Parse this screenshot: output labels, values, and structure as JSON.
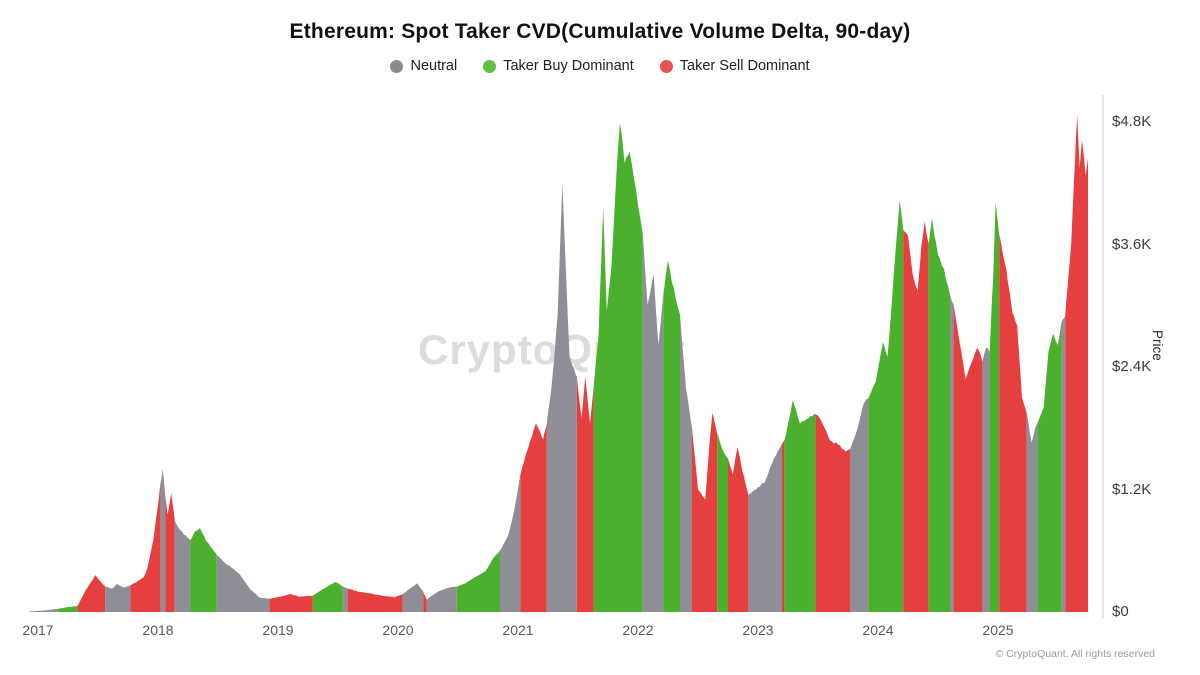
{
  "title": "Ethereum: Spot Taker CVD(Cumulative Volume Delta, 90-day)",
  "watermark": "CryptoQuant",
  "footer": "© CryptoQuant. All rights reserved",
  "legend": [
    {
      "key": "neutral",
      "label": "Neutral",
      "dot_color": "#8b8b8b"
    },
    {
      "key": "buy",
      "label": "Taker Buy Dominant",
      "dot_color": "#62bd45"
    },
    {
      "key": "sell",
      "label": "Taker Sell Dominant",
      "dot_color": "#ea5252"
    }
  ],
  "y_axis": {
    "label": "Price",
    "ticks": [
      {
        "value": 0,
        "label": "$0"
      },
      {
        "value": 1200,
        "label": "$1.2K"
      },
      {
        "value": 2400,
        "label": "$2.4K"
      },
      {
        "value": 3600,
        "label": "$3.6K"
      },
      {
        "value": 4800,
        "label": "$4.8K"
      }
    ]
  },
  "x_axis": {
    "ticks": [
      {
        "value": 2017,
        "label": "2017"
      },
      {
        "value": 2018,
        "label": "2018"
      },
      {
        "value": 2019,
        "label": "2019"
      },
      {
        "value": 2020,
        "label": "2020"
      },
      {
        "value": 2021,
        "label": "2021"
      },
      {
        "value": 2022,
        "label": "2022"
      },
      {
        "value": 2023,
        "label": "2023"
      },
      {
        "value": 2024,
        "label": "2024"
      },
      {
        "value": 2025,
        "label": "2025"
      }
    ]
  },
  "chart_data": {
    "type": "area",
    "title": "Ethereum: Spot Taker CVD(Cumulative Volume Delta, 90-day)",
    "xlabel": "",
    "ylabel": "Price",
    "x_unit": "year",
    "y_unit": "USD",
    "xlim": [
      2016.93,
      2025.78
    ],
    "ylim": [
      0,
      5050
    ],
    "grid": false,
    "legend_position": "top",
    "series_colors": {
      "neutral": "#8e8e96",
      "buy": "#4cb02f",
      "sell": "#e5403f"
    },
    "axis_line_color": "#dcdcdc",
    "segments": [
      {
        "regime": "neutral",
        "points": [
          [
            2016.93,
            5
          ],
          [
            2017.05,
            15
          ],
          [
            2017.16,
            30
          ]
        ]
      },
      {
        "regime": "buy",
        "points": [
          [
            2017.16,
            30
          ],
          [
            2017.23,
            45
          ],
          [
            2017.33,
            60
          ]
        ]
      },
      {
        "regime": "sell",
        "points": [
          [
            2017.33,
            60
          ],
          [
            2017.39,
            200
          ],
          [
            2017.48,
            360
          ],
          [
            2017.52,
            300
          ],
          [
            2017.56,
            250
          ]
        ]
      },
      {
        "regime": "neutral",
        "points": [
          [
            2017.56,
            250
          ],
          [
            2017.62,
            230
          ],
          [
            2017.66,
            275
          ],
          [
            2017.71,
            240
          ],
          [
            2017.77,
            260
          ]
        ]
      },
      {
        "regime": "sell",
        "points": [
          [
            2017.77,
            260
          ],
          [
            2017.83,
            300
          ],
          [
            2017.88,
            340
          ],
          [
            2017.91,
            420
          ],
          [
            2017.96,
            700
          ],
          [
            2018.0,
            1050
          ],
          [
            2018.02,
            1250
          ]
        ]
      },
      {
        "regime": "neutral",
        "points": [
          [
            2018.02,
            1250
          ],
          [
            2018.04,
            1400
          ],
          [
            2018.06,
            1150
          ]
        ]
      },
      {
        "regime": "sell",
        "points": [
          [
            2018.06,
            1150
          ],
          [
            2018.08,
            950
          ],
          [
            2018.11,
            1160
          ],
          [
            2018.14,
            900
          ]
        ]
      },
      {
        "regime": "neutral",
        "points": [
          [
            2018.14,
            900
          ],
          [
            2018.17,
            820
          ],
          [
            2018.27,
            700
          ]
        ]
      },
      {
        "regime": "buy",
        "points": [
          [
            2018.27,
            700
          ],
          [
            2018.31,
            790
          ],
          [
            2018.35,
            820
          ],
          [
            2018.4,
            700
          ],
          [
            2018.49,
            560
          ]
        ]
      },
      {
        "regime": "neutral",
        "points": [
          [
            2018.49,
            560
          ],
          [
            2018.56,
            480
          ],
          [
            2018.63,
            420
          ],
          [
            2018.68,
            370
          ],
          [
            2018.77,
            220
          ],
          [
            2018.85,
            140
          ],
          [
            2018.93,
            130
          ]
        ]
      },
      {
        "regime": "sell",
        "points": [
          [
            2018.93,
            130
          ],
          [
            2019.02,
            150
          ],
          [
            2019.1,
            175
          ],
          [
            2019.18,
            150
          ],
          [
            2019.29,
            160
          ]
        ]
      },
      {
        "regime": "buy",
        "points": [
          [
            2019.29,
            160
          ],
          [
            2019.37,
            220
          ],
          [
            2019.48,
            295
          ],
          [
            2019.54,
            250
          ]
        ]
      },
      {
        "regime": "neutral",
        "points": [
          [
            2019.54,
            250
          ],
          [
            2019.58,
            230
          ]
        ]
      },
      {
        "regime": "sell",
        "points": [
          [
            2019.58,
            230
          ],
          [
            2019.67,
            200
          ],
          [
            2019.77,
            180
          ],
          [
            2019.87,
            160
          ],
          [
            2019.97,
            145
          ],
          [
            2020.04,
            175
          ]
        ]
      },
      {
        "regime": "neutral",
        "points": [
          [
            2020.04,
            175
          ],
          [
            2020.1,
            230
          ],
          [
            2020.16,
            280
          ],
          [
            2020.21,
            200
          ]
        ]
      },
      {
        "regime": "sell",
        "points": [
          [
            2020.21,
            200
          ],
          [
            2020.24,
            120
          ]
        ]
      },
      {
        "regime": "neutral",
        "points": [
          [
            2020.24,
            120
          ],
          [
            2020.28,
            160
          ],
          [
            2020.35,
            210
          ],
          [
            2020.43,
            240
          ],
          [
            2020.49,
            250
          ]
        ]
      },
      {
        "regime": "buy",
        "points": [
          [
            2020.49,
            250
          ],
          [
            2020.56,
            280
          ],
          [
            2020.64,
            340
          ],
          [
            2020.73,
            400
          ],
          [
            2020.79,
            520
          ],
          [
            2020.85,
            600
          ]
        ]
      },
      {
        "regime": "neutral",
        "points": [
          [
            2020.85,
            600
          ],
          [
            2020.92,
            750
          ],
          [
            2020.97,
            1000
          ],
          [
            2021.02,
            1350
          ]
        ]
      },
      {
        "regime": "sell",
        "points": [
          [
            2021.02,
            1350
          ],
          [
            2021.08,
            1600
          ],
          [
            2021.15,
            1850
          ],
          [
            2021.21,
            1700
          ],
          [
            2021.24,
            1850
          ]
        ]
      },
      {
        "regime": "neutral",
        "points": [
          [
            2021.24,
            1850
          ],
          [
            2021.28,
            2200
          ],
          [
            2021.33,
            2900
          ],
          [
            2021.37,
            4200
          ],
          [
            2021.4,
            3300
          ],
          [
            2021.43,
            2500
          ],
          [
            2021.49,
            2300
          ]
        ]
      },
      {
        "regime": "sell",
        "points": [
          [
            2021.49,
            2300
          ],
          [
            2021.53,
            1900
          ],
          [
            2021.56,
            2300
          ],
          [
            2021.6,
            1850
          ],
          [
            2021.63,
            2200
          ]
        ]
      },
      {
        "regime": "buy",
        "points": [
          [
            2021.63,
            2200
          ],
          [
            2021.67,
            2700
          ],
          [
            2021.71,
            3950
          ],
          [
            2021.74,
            2950
          ],
          [
            2021.78,
            3400
          ],
          [
            2021.82,
            4300
          ],
          [
            2021.85,
            4820
          ],
          [
            2021.89,
            4400
          ],
          [
            2021.93,
            4500
          ],
          [
            2021.98,
            4150
          ],
          [
            2022.04,
            3700
          ]
        ]
      },
      {
        "regime": "neutral",
        "points": [
          [
            2022.04,
            3700
          ],
          [
            2022.08,
            3000
          ],
          [
            2022.13,
            3300
          ],
          [
            2022.17,
            2600
          ],
          [
            2022.21,
            3100
          ]
        ]
      },
      {
        "regime": "buy",
        "points": [
          [
            2022.21,
            3100
          ],
          [
            2022.25,
            3450
          ],
          [
            2022.29,
            3200
          ],
          [
            2022.35,
            2900
          ]
        ]
      },
      {
        "regime": "neutral",
        "points": [
          [
            2022.35,
            2900
          ],
          [
            2022.4,
            2200
          ],
          [
            2022.45,
            1800
          ]
        ]
      },
      {
        "regime": "sell",
        "points": [
          [
            2022.45,
            1800
          ],
          [
            2022.5,
            1200
          ],
          [
            2022.56,
            1100
          ],
          [
            2022.6,
            1700
          ],
          [
            2022.62,
            1960
          ],
          [
            2022.66,
            1750
          ]
        ]
      },
      {
        "regime": "buy",
        "points": [
          [
            2022.66,
            1750
          ],
          [
            2022.7,
            1600
          ],
          [
            2022.75,
            1500
          ]
        ]
      },
      {
        "regime": "sell",
        "points": [
          [
            2022.75,
            1500
          ],
          [
            2022.79,
            1350
          ],
          [
            2022.83,
            1620
          ],
          [
            2022.87,
            1380
          ],
          [
            2022.92,
            1150
          ]
        ]
      },
      {
        "regime": "neutral",
        "points": [
          [
            2022.92,
            1150
          ],
          [
            2022.98,
            1200
          ],
          [
            2023.06,
            1280
          ],
          [
            2023.13,
            1500
          ],
          [
            2023.2,
            1650
          ]
        ]
      },
      {
        "regime": "sell",
        "points": [
          [
            2023.2,
            1650
          ],
          [
            2023.22,
            1680
          ]
        ]
      },
      {
        "regime": "buy",
        "points": [
          [
            2023.22,
            1680
          ],
          [
            2023.26,
            1900
          ],
          [
            2023.29,
            2070
          ],
          [
            2023.35,
            1850
          ],
          [
            2023.42,
            1900
          ],
          [
            2023.48,
            1950
          ]
        ]
      },
      {
        "regime": "sell",
        "points": [
          [
            2023.48,
            1950
          ],
          [
            2023.53,
            1870
          ],
          [
            2023.6,
            1680
          ],
          [
            2023.67,
            1640
          ],
          [
            2023.73,
            1570
          ],
          [
            2023.77,
            1600
          ]
        ]
      },
      {
        "regime": "neutral",
        "points": [
          [
            2023.77,
            1600
          ],
          [
            2023.83,
            1800
          ],
          [
            2023.88,
            2050
          ],
          [
            2023.92,
            2100
          ]
        ]
      },
      {
        "regime": "buy",
        "points": [
          [
            2023.92,
            2100
          ],
          [
            2023.98,
            2250
          ],
          [
            2024.04,
            2650
          ],
          [
            2024.08,
            2500
          ],
          [
            2024.11,
            2950
          ],
          [
            2024.15,
            3600
          ],
          [
            2024.18,
            4040
          ],
          [
            2024.21,
            3750
          ]
        ]
      },
      {
        "regime": "sell",
        "points": [
          [
            2024.21,
            3750
          ],
          [
            2024.25,
            3680
          ],
          [
            2024.29,
            3300
          ],
          [
            2024.33,
            3130
          ],
          [
            2024.36,
            3550
          ],
          [
            2024.39,
            3830
          ],
          [
            2024.42,
            3600
          ]
        ]
      },
      {
        "regime": "buy",
        "points": [
          [
            2024.42,
            3600
          ],
          [
            2024.45,
            3850
          ],
          [
            2024.5,
            3500
          ],
          [
            2024.55,
            3350
          ],
          [
            2024.6,
            3100
          ]
        ]
      },
      {
        "regime": "neutral",
        "points": [
          [
            2024.6,
            3100
          ],
          [
            2024.63,
            3000
          ]
        ]
      },
      {
        "regime": "sell",
        "points": [
          [
            2024.63,
            3000
          ],
          [
            2024.68,
            2650
          ],
          [
            2024.73,
            2280
          ],
          [
            2024.78,
            2450
          ],
          [
            2024.83,
            2600
          ],
          [
            2024.87,
            2450
          ]
        ]
      },
      {
        "regime": "neutral",
        "points": [
          [
            2024.87,
            2450
          ],
          [
            2024.9,
            2600
          ],
          [
            2024.93,
            2550
          ]
        ]
      },
      {
        "regime": "buy",
        "points": [
          [
            2024.93,
            2550
          ],
          [
            2024.96,
            3300
          ],
          [
            2024.98,
            4010
          ],
          [
            2025.01,
            3700
          ]
        ]
      },
      {
        "regime": "sell",
        "points": [
          [
            2025.01,
            3700
          ],
          [
            2025.07,
            3350
          ],
          [
            2025.12,
            2950
          ],
          [
            2025.16,
            2800
          ],
          [
            2025.2,
            2100
          ],
          [
            2025.24,
            1950
          ]
        ]
      },
      {
        "regime": "neutral",
        "points": [
          [
            2025.24,
            1950
          ],
          [
            2025.28,
            1650
          ],
          [
            2025.31,
            1800
          ],
          [
            2025.33,
            1850
          ]
        ]
      },
      {
        "regime": "buy",
        "points": [
          [
            2025.33,
            1850
          ],
          [
            2025.38,
            2000
          ],
          [
            2025.42,
            2550
          ],
          [
            2025.46,
            2730
          ],
          [
            2025.5,
            2600
          ],
          [
            2025.53,
            2850
          ]
        ]
      },
      {
        "regime": "neutral",
        "points": [
          [
            2025.53,
            2850
          ],
          [
            2025.56,
            2900
          ]
        ]
      },
      {
        "regime": "sell",
        "points": [
          [
            2025.56,
            2900
          ],
          [
            2025.61,
            3610
          ],
          [
            2025.64,
            4400
          ],
          [
            2025.66,
            4860
          ],
          [
            2025.68,
            4350
          ],
          [
            2025.7,
            4620
          ],
          [
            2025.73,
            4300
          ],
          [
            2025.75,
            4450
          ]
        ]
      }
    ]
  }
}
